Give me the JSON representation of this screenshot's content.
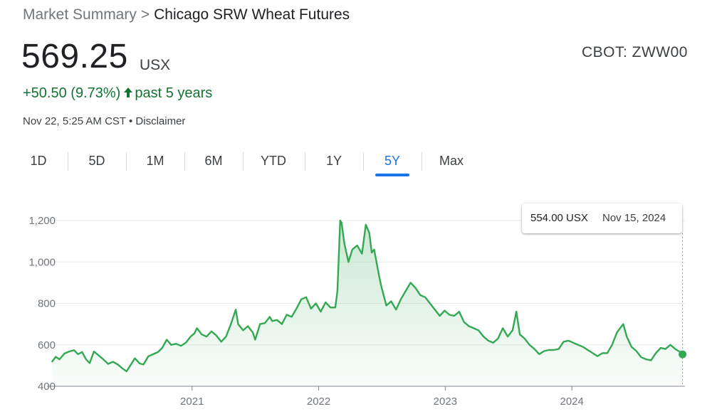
{
  "breadcrumb": {
    "root": "Market Summary",
    "separator": ">",
    "current": "Chicago SRW Wheat Futures"
  },
  "quote": {
    "price": "569.25",
    "currency": "USX",
    "ticker": "CBOT: ZWW00",
    "change": "+50.50 (9.73%)",
    "change_arrow": "up-arrow-icon",
    "change_period": "past 5 years",
    "timestamp": "Nov 22, 5:25 AM CST",
    "timestamp_sep": "•",
    "disclaimer": "Disclaimer"
  },
  "tabs": [
    {
      "label": "1D",
      "active": false
    },
    {
      "label": "5D",
      "active": false
    },
    {
      "label": "1M",
      "active": false
    },
    {
      "label": "6M",
      "active": false
    },
    {
      "label": "YTD",
      "active": false
    },
    {
      "label": "1Y",
      "active": false
    },
    {
      "label": "5Y",
      "active": true
    },
    {
      "label": "Max",
      "active": false
    }
  ],
  "tooltip": {
    "value": "554.00 USX",
    "date": "Nov 15, 2024"
  },
  "colors": {
    "line": "#34a853",
    "positive": "#137333",
    "accent": "#1a73e8",
    "grid": "#ebebeb",
    "axis_text": "#70757a"
  },
  "chart_data": {
    "type": "area",
    "title": "",
    "xlabel": "",
    "ylabel": "",
    "ylim": [
      400,
      1200
    ],
    "y_ticks": [
      400,
      600,
      800,
      1000,
      1200
    ],
    "y_tick_labels": [
      "400",
      "600",
      "800",
      "1,000",
      "1,200"
    ],
    "x_ticks": [
      "2021",
      "2022",
      "2023",
      "2024"
    ],
    "x_tick_dates": [
      "2021-01-01",
      "2022-01-01",
      "2023-01-01",
      "2024-01-01"
    ],
    "grid": true,
    "series": [
      {
        "points": [
          [
            "2019-11-25",
            520
          ],
          [
            "2019-12-05",
            542
          ],
          [
            "2019-12-16",
            530
          ],
          [
            "2019-12-30",
            558
          ],
          [
            "2020-01-13",
            568
          ],
          [
            "2020-01-27",
            574
          ],
          [
            "2020-02-07",
            555
          ],
          [
            "2020-02-19",
            565
          ],
          [
            "2020-03-02",
            528
          ],
          [
            "2020-03-12",
            512
          ],
          [
            "2020-03-24",
            568
          ],
          [
            "2020-04-06",
            550
          ],
          [
            "2020-04-20",
            530
          ],
          [
            "2020-05-04",
            508
          ],
          [
            "2020-05-18",
            518
          ],
          [
            "2020-06-01",
            505
          ],
          [
            "2020-06-15",
            485
          ],
          [
            "2020-06-26",
            472
          ],
          [
            "2020-07-07",
            500
          ],
          [
            "2020-07-20",
            535
          ],
          [
            "2020-08-03",
            510
          ],
          [
            "2020-08-14",
            505
          ],
          [
            "2020-08-28",
            545
          ],
          [
            "2020-09-11",
            555
          ],
          [
            "2020-09-25",
            565
          ],
          [
            "2020-10-07",
            585
          ],
          [
            "2020-10-20",
            625
          ],
          [
            "2020-11-02",
            600
          ],
          [
            "2020-11-16",
            605
          ],
          [
            "2020-11-30",
            595
          ],
          [
            "2020-12-14",
            610
          ],
          [
            "2020-12-28",
            640
          ],
          [
            "2021-01-08",
            655
          ],
          [
            "2021-01-15",
            680
          ],
          [
            "2021-01-29",
            650
          ],
          [
            "2021-02-12",
            640
          ],
          [
            "2021-02-26",
            665
          ],
          [
            "2021-03-12",
            645
          ],
          [
            "2021-03-26",
            615
          ],
          [
            "2021-04-09",
            640
          ],
          [
            "2021-04-23",
            700
          ],
          [
            "2021-05-07",
            770
          ],
          [
            "2021-05-14",
            700
          ],
          [
            "2021-05-28",
            670
          ],
          [
            "2021-06-11",
            690
          ],
          [
            "2021-06-25",
            660
          ],
          [
            "2021-07-02",
            625
          ],
          [
            "2021-07-16",
            700
          ],
          [
            "2021-07-30",
            705
          ],
          [
            "2021-08-13",
            735
          ],
          [
            "2021-08-20",
            715
          ],
          [
            "2021-09-03",
            720
          ],
          [
            "2021-09-17",
            700
          ],
          [
            "2021-10-01",
            745
          ],
          [
            "2021-10-15",
            735
          ],
          [
            "2021-10-29",
            775
          ],
          [
            "2021-11-12",
            820
          ],
          [
            "2021-11-26",
            830
          ],
          [
            "2021-12-10",
            775
          ],
          [
            "2021-12-24",
            800
          ],
          [
            "2022-01-07",
            760
          ],
          [
            "2022-01-21",
            805
          ],
          [
            "2022-02-04",
            780
          ],
          [
            "2022-02-18",
            780
          ],
          [
            "2022-02-24",
            860
          ],
          [
            "2022-03-04",
            1200
          ],
          [
            "2022-03-08",
            1190
          ],
          [
            "2022-03-16",
            1090
          ],
          [
            "2022-03-28",
            1000
          ],
          [
            "2022-04-08",
            1060
          ],
          [
            "2022-04-22",
            1080
          ],
          [
            "2022-05-06",
            1040
          ],
          [
            "2022-05-17",
            1180
          ],
          [
            "2022-05-27",
            1140
          ],
          [
            "2022-06-03",
            1045
          ],
          [
            "2022-06-10",
            1060
          ],
          [
            "2022-06-24",
            935
          ],
          [
            "2022-07-01",
            880
          ],
          [
            "2022-07-15",
            790
          ],
          [
            "2022-07-29",
            810
          ],
          [
            "2022-08-12",
            770
          ],
          [
            "2022-08-26",
            820
          ],
          [
            "2022-09-09",
            860
          ],
          [
            "2022-09-23",
            900
          ],
          [
            "2022-10-07",
            875
          ],
          [
            "2022-10-21",
            840
          ],
          [
            "2022-11-04",
            830
          ],
          [
            "2022-11-18",
            800
          ],
          [
            "2022-12-02",
            770
          ],
          [
            "2022-12-16",
            740
          ],
          [
            "2022-12-30",
            765
          ],
          [
            "2023-01-13",
            745
          ],
          [
            "2023-01-27",
            740
          ],
          [
            "2023-02-10",
            760
          ],
          [
            "2023-02-24",
            710
          ],
          [
            "2023-03-10",
            690
          ],
          [
            "2023-03-24",
            680
          ],
          [
            "2023-04-07",
            670
          ],
          [
            "2023-04-21",
            640
          ],
          [
            "2023-05-05",
            620
          ],
          [
            "2023-05-19",
            610
          ],
          [
            "2023-06-02",
            630
          ],
          [
            "2023-06-16",
            680
          ],
          [
            "2023-06-30",
            640
          ],
          [
            "2023-07-14",
            670
          ],
          [
            "2023-07-25",
            760
          ],
          [
            "2023-08-04",
            650
          ],
          [
            "2023-08-18",
            630
          ],
          [
            "2023-09-01",
            600
          ],
          [
            "2023-09-15",
            580
          ],
          [
            "2023-09-29",
            555
          ],
          [
            "2023-10-13",
            570
          ],
          [
            "2023-10-27",
            575
          ],
          [
            "2023-11-10",
            575
          ],
          [
            "2023-11-24",
            580
          ],
          [
            "2023-12-08",
            615
          ],
          [
            "2023-12-22",
            620
          ],
          [
            "2024-01-05",
            610
          ],
          [
            "2024-01-19",
            600
          ],
          [
            "2024-02-02",
            590
          ],
          [
            "2024-02-16",
            575
          ],
          [
            "2024-03-01",
            560
          ],
          [
            "2024-03-15",
            545
          ],
          [
            "2024-03-29",
            560
          ],
          [
            "2024-04-12",
            560
          ],
          [
            "2024-04-26",
            600
          ],
          [
            "2024-05-10",
            660
          ],
          [
            "2024-05-28",
            700
          ],
          [
            "2024-06-07",
            640
          ],
          [
            "2024-06-21",
            590
          ],
          [
            "2024-07-05",
            570
          ],
          [
            "2024-07-19",
            540
          ],
          [
            "2024-08-02",
            530
          ],
          [
            "2024-08-16",
            525
          ],
          [
            "2024-08-30",
            560
          ],
          [
            "2024-09-13",
            585
          ],
          [
            "2024-09-27",
            580
          ],
          [
            "2024-10-11",
            600
          ],
          [
            "2024-10-25",
            580
          ],
          [
            "2024-11-08",
            565
          ],
          [
            "2024-11-15",
            554
          ]
        ]
      }
    ]
  }
}
